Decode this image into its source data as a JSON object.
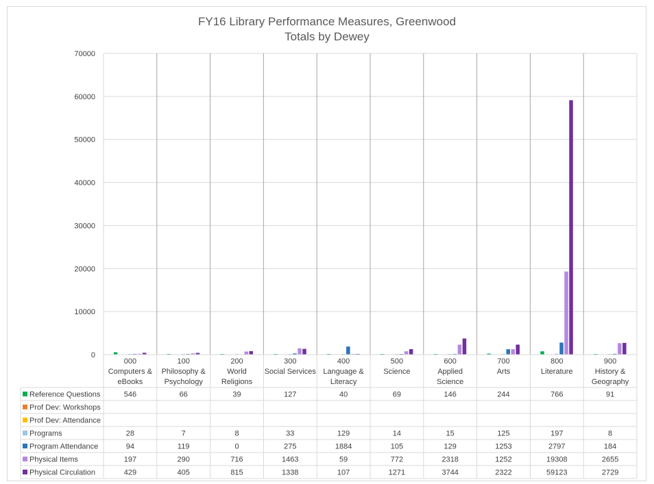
{
  "chart_data": {
    "type": "bar",
    "title": "FY16 Library Performance Measures, Greenwood",
    "subtitle": "Totals by Dewey",
    "categories": [
      [
        "000",
        "Computers &",
        "eBooks"
      ],
      [
        "100",
        "Philosophy &",
        "Psychology"
      ],
      [
        "200",
        "World",
        "Religions"
      ],
      [
        "300",
        "Social Services"
      ],
      [
        "400",
        "Language &",
        "Literacy"
      ],
      [
        "500",
        "Science"
      ],
      [
        "600",
        "Applied",
        "Science"
      ],
      [
        "700",
        "Arts"
      ],
      [
        "800",
        "Literature"
      ],
      [
        "900",
        "History &",
        "Geography"
      ]
    ],
    "ylim": [
      0,
      70000
    ],
    "yticks": [
      0,
      10000,
      20000,
      30000,
      40000,
      50000,
      60000,
      70000
    ],
    "grid": true,
    "legend": "data-table",
    "series": [
      {
        "name": "Reference Questions",
        "color": "#00b050",
        "values": [
          546,
          66,
          39,
          127,
          40,
          69,
          146,
          244,
          766,
          91
        ]
      },
      {
        "name": "Prof Dev: Workshops",
        "color": "#ed7d31",
        "values": [
          null,
          null,
          null,
          null,
          null,
          null,
          null,
          null,
          null,
          null
        ]
      },
      {
        "name": "Prof Dev: Attendance",
        "color": "#ffc000",
        "values": [
          null,
          null,
          null,
          null,
          null,
          null,
          null,
          null,
          null,
          null
        ]
      },
      {
        "name": "Programs",
        "color": "#9dc3e6",
        "values": [
          28,
          7,
          8,
          33,
          129,
          14,
          15,
          125,
          197,
          8
        ]
      },
      {
        "name": "Program Attendance",
        "color": "#2e75b6",
        "values": [
          94,
          119,
          0,
          275,
          1884,
          105,
          129,
          1253,
          2797,
          184
        ]
      },
      {
        "name": "Physical Items",
        "color": "#b589e0",
        "values": [
          197,
          290,
          716,
          1463,
          59,
          772,
          2318,
          1252,
          19308,
          2655
        ]
      },
      {
        "name": "Physical Circulation",
        "color": "#7030a0",
        "values": [
          429,
          405,
          815,
          1338,
          107,
          1271,
          3744,
          2322,
          59123,
          2729
        ]
      }
    ]
  }
}
